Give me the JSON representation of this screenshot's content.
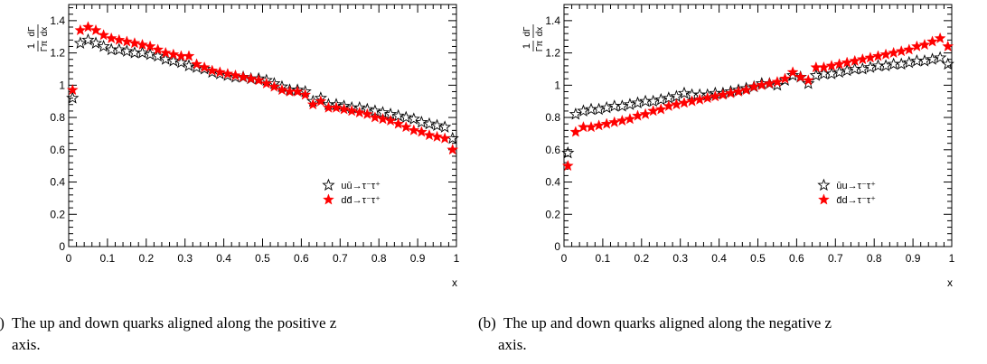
{
  "captions": [
    {
      "line1": "(a)  The up and down quarks aligned along the positive z",
      "line2": "axis."
    },
    {
      "line1": "(b)  The up and down quarks aligned along the negative z",
      "line2": "axis."
    }
  ],
  "colors": {
    "series_black": "#000000",
    "series_red": "#ff0000"
  },
  "chart_data": [
    {
      "type": "scatter",
      "title": "",
      "xlabel": "x",
      "ylabel_numerator": "dΓ",
      "ylabel_denominator": "dx",
      "ylabel_prefix": "1/Γ",
      "ylabel_subscript": "π",
      "xlim": [
        0,
        1
      ],
      "ylim": [
        0,
        1.5
      ],
      "xticks": [
        0,
        0.1,
        0.2,
        0.3,
        0.4,
        0.5,
        0.6,
        0.7,
        0.8,
        0.9,
        1
      ],
      "xtick_labels": [
        "0",
        "0.1",
        "0.2",
        "0.3",
        "0.4",
        "0.5",
        "0.6",
        "0.7",
        "0.8",
        "0.9",
        "1"
      ],
      "yticks": [
        0,
        0.2,
        0.4,
        0.6,
        0.8,
        1,
        1.2,
        1.4
      ],
      "ytick_labels": [
        "0",
        "0.2",
        "0.4",
        "0.6",
        "0.8",
        "1",
        "1.2",
        "1.4"
      ],
      "legend_position": "bottom-right",
      "series": [
        {
          "name": "uū→τ⁻τ⁺",
          "marker": "open-star",
          "color": "#000000",
          "x": [
            0.01,
            0.03,
            0.05,
            0.07,
            0.09,
            0.11,
            0.13,
            0.15,
            0.17,
            0.19,
            0.21,
            0.23,
            0.25,
            0.27,
            0.29,
            0.31,
            0.33,
            0.35,
            0.37,
            0.39,
            0.41,
            0.43,
            0.45,
            0.47,
            0.49,
            0.51,
            0.53,
            0.55,
            0.57,
            0.59,
            0.61,
            0.63,
            0.65,
            0.67,
            0.69,
            0.71,
            0.73,
            0.75,
            0.77,
            0.79,
            0.81,
            0.83,
            0.85,
            0.87,
            0.89,
            0.91,
            0.93,
            0.95,
            0.97,
            0.99
          ],
          "y": [
            0.92,
            1.26,
            1.28,
            1.26,
            1.24,
            1.22,
            1.22,
            1.21,
            1.2,
            1.2,
            1.19,
            1.18,
            1.16,
            1.15,
            1.14,
            1.12,
            1.11,
            1.1,
            1.08,
            1.07,
            1.06,
            1.05,
            1.05,
            1.04,
            1.04,
            1.03,
            1.01,
            0.99,
            0.97,
            0.97,
            0.96,
            0.9,
            0.92,
            0.88,
            0.88,
            0.87,
            0.86,
            0.86,
            0.85,
            0.84,
            0.83,
            0.82,
            0.81,
            0.8,
            0.79,
            0.77,
            0.76,
            0.75,
            0.74,
            0.67
          ]
        },
        {
          "name": "dd̄→τ⁻τ⁺",
          "marker": "filled-star",
          "color": "#ff0000",
          "x": [
            0.01,
            0.03,
            0.05,
            0.07,
            0.09,
            0.11,
            0.13,
            0.15,
            0.17,
            0.19,
            0.21,
            0.23,
            0.25,
            0.27,
            0.29,
            0.31,
            0.33,
            0.35,
            0.37,
            0.39,
            0.41,
            0.43,
            0.45,
            0.47,
            0.49,
            0.51,
            0.53,
            0.55,
            0.57,
            0.59,
            0.61,
            0.63,
            0.65,
            0.67,
            0.69,
            0.71,
            0.73,
            0.75,
            0.77,
            0.79,
            0.81,
            0.83,
            0.85,
            0.87,
            0.89,
            0.91,
            0.93,
            0.95,
            0.97,
            0.99
          ],
          "y": [
            0.97,
            1.34,
            1.36,
            1.34,
            1.31,
            1.29,
            1.28,
            1.27,
            1.26,
            1.25,
            1.24,
            1.22,
            1.2,
            1.19,
            1.18,
            1.18,
            1.13,
            1.11,
            1.09,
            1.08,
            1.07,
            1.06,
            1.05,
            1.04,
            1.03,
            1.01,
            0.99,
            0.97,
            0.96,
            0.96,
            0.94,
            0.88,
            0.9,
            0.86,
            0.86,
            0.85,
            0.84,
            0.83,
            0.82,
            0.8,
            0.79,
            0.78,
            0.76,
            0.74,
            0.72,
            0.71,
            0.69,
            0.68,
            0.67,
            0.6
          ]
        }
      ]
    },
    {
      "type": "scatter",
      "title": "",
      "xlabel": "x",
      "ylabel_numerator": "dΓ",
      "ylabel_denominator": "dx",
      "ylabel_prefix": "1/Γ",
      "ylabel_subscript": "π",
      "xlim": [
        0,
        1
      ],
      "ylim": [
        0,
        1.5
      ],
      "xticks": [
        0,
        0.1,
        0.2,
        0.3,
        0.4,
        0.5,
        0.6,
        0.7,
        0.8,
        0.9,
        1
      ],
      "xtick_labels": [
        "0",
        "0.1",
        "0.2",
        "0.3",
        "0.4",
        "0.5",
        "0.6",
        "0.7",
        "0.8",
        "0.9",
        "1"
      ],
      "yticks": [
        0,
        0.2,
        0.4,
        0.6,
        0.8,
        1,
        1.2,
        1.4
      ],
      "ytick_labels": [
        "0",
        "0.2",
        "0.4",
        "0.6",
        "0.8",
        "1",
        "1.2",
        "1.4"
      ],
      "legend_position": "bottom-right",
      "series": [
        {
          "name": "ūu→τ⁻τ⁺",
          "marker": "open-star",
          "color": "#000000",
          "x": [
            0.01,
            0.03,
            0.05,
            0.07,
            0.09,
            0.11,
            0.13,
            0.15,
            0.17,
            0.19,
            0.21,
            0.23,
            0.25,
            0.27,
            0.29,
            0.31,
            0.33,
            0.35,
            0.37,
            0.39,
            0.41,
            0.43,
            0.45,
            0.47,
            0.49,
            0.51,
            0.53,
            0.55,
            0.57,
            0.59,
            0.61,
            0.63,
            0.65,
            0.67,
            0.69,
            0.71,
            0.73,
            0.75,
            0.77,
            0.79,
            0.81,
            0.83,
            0.85,
            0.87,
            0.89,
            0.91,
            0.93,
            0.95,
            0.97,
            0.99
          ],
          "y": [
            0.58,
            0.82,
            0.84,
            0.85,
            0.85,
            0.86,
            0.87,
            0.87,
            0.88,
            0.89,
            0.9,
            0.9,
            0.91,
            0.92,
            0.93,
            0.95,
            0.94,
            0.94,
            0.94,
            0.95,
            0.95,
            0.96,
            0.97,
            0.98,
            0.99,
            1.01,
            1.01,
            1.0,
            1.03,
            1.06,
            1.05,
            1.01,
            1.06,
            1.07,
            1.07,
            1.08,
            1.09,
            1.1,
            1.1,
            1.11,
            1.12,
            1.12,
            1.13,
            1.13,
            1.14,
            1.15,
            1.15,
            1.16,
            1.17,
            1.13
          ]
        },
        {
          "name": "d̄d→τ⁻τ⁺",
          "marker": "filled-star",
          "color": "#ff0000",
          "x": [
            0.01,
            0.03,
            0.05,
            0.07,
            0.09,
            0.11,
            0.13,
            0.15,
            0.17,
            0.19,
            0.21,
            0.23,
            0.25,
            0.27,
            0.29,
            0.31,
            0.33,
            0.35,
            0.37,
            0.39,
            0.41,
            0.43,
            0.45,
            0.47,
            0.49,
            0.51,
            0.53,
            0.55,
            0.57,
            0.59,
            0.61,
            0.63,
            0.65,
            0.67,
            0.69,
            0.71,
            0.73,
            0.75,
            0.77,
            0.79,
            0.81,
            0.83,
            0.85,
            0.87,
            0.89,
            0.91,
            0.93,
            0.95,
            0.97,
            0.99
          ],
          "y": [
            0.5,
            0.71,
            0.74,
            0.74,
            0.75,
            0.76,
            0.77,
            0.78,
            0.79,
            0.81,
            0.82,
            0.84,
            0.85,
            0.87,
            0.88,
            0.89,
            0.9,
            0.91,
            0.92,
            0.93,
            0.94,
            0.95,
            0.96,
            0.97,
            0.99,
            1.0,
            1.01,
            1.02,
            1.04,
            1.08,
            1.05,
            1.03,
            1.11,
            1.11,
            1.12,
            1.13,
            1.14,
            1.15,
            1.16,
            1.17,
            1.18,
            1.19,
            1.2,
            1.21,
            1.22,
            1.24,
            1.25,
            1.27,
            1.29,
            1.24
          ]
        }
      ]
    }
  ]
}
